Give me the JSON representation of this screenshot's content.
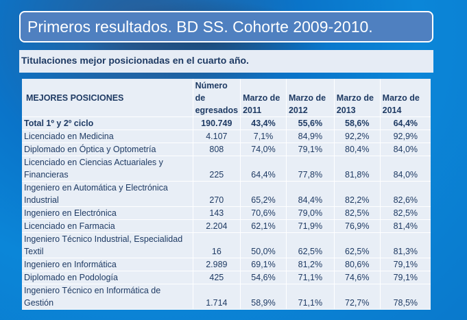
{
  "title": "Primeros resultados. BD SS. Cohorte 2009-2010.",
  "subtitle": "Titulaciones mejor posicionadas en el cuarto año.",
  "table": {
    "headers": [
      "MEJORES POSICIONES",
      "Número de egresados",
      "Marzo de 2011",
      "Marzo de 2012",
      "Marzo de 2013",
      "Marzo de 2014"
    ],
    "rows": [
      [
        "Total 1º y 2º ciclo",
        "190.749",
        "43,4%",
        "55,6%",
        "58,6%",
        "64,4%"
      ],
      [
        "Licenciado en Medicina",
        "4.107",
        "7,1%",
        "84,9%",
        "92,2%",
        "92,9%"
      ],
      [
        "Diplomado en Óptica y Optometría",
        "808",
        "74,0%",
        "79,1%",
        "80,4%",
        "84,0%"
      ],
      [
        "Licenciado en Ciencias Actuariales y Financieras",
        "225",
        "64,4%",
        "77,8%",
        "81,8%",
        "84,0%"
      ],
      [
        "Ingeniero en Automática y Electrónica Industrial",
        "270",
        "65,2%",
        "84,4%",
        "82,2%",
        "82,6%"
      ],
      [
        "Ingeniero en Electrónica",
        "143",
        "70,6%",
        "79,0%",
        "82,5%",
        "82,5%"
      ],
      [
        "Licenciado en Farmacia",
        "2.204",
        "62,1%",
        "71,9%",
        "76,9%",
        "81,4%"
      ],
      [
        "Ingeniero Técnico Industrial, Especialidad Textil",
        "16",
        "50,0%",
        "62,5%",
        "62,5%",
        "81,3%"
      ],
      [
        "Ingeniero en Informática",
        "2.989",
        "69,1%",
        "81,2%",
        "80,6%",
        "79,1%"
      ],
      [
        "Diplomado en Podología",
        "425",
        "54,6%",
        "71,1%",
        "74,6%",
        "79,1%"
      ],
      [
        "Ingeniero Técnico en Informática de Gestión",
        "1.714",
        "58,9%",
        "71,1%",
        "72,7%",
        "78,5%"
      ]
    ]
  }
}
